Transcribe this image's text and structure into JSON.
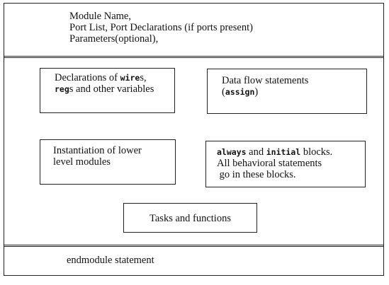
{
  "header": {
    "line1": "Module Name,",
    "line2": "Port List, Port Declarations (if ports present)",
    "line3": "Parameters(optional),"
  },
  "blocks": {
    "declarations": {
      "pre": "Declarations of ",
      "kw1": "wire",
      "post1": "s,",
      "kw2": "reg",
      "post2": "s and other variables"
    },
    "dataflow": {
      "line1": "Data flow statements",
      "open": "(",
      "kw": "assign",
      "close": ")"
    },
    "instantiation": {
      "line1": "Instantiation of lower",
      "line2": "level modules"
    },
    "behavioral": {
      "kw1": "always",
      "mid": " and ",
      "kw2": "initial",
      "post": " blocks.",
      "line2": "All behavioral statements",
      "line3": " go in these blocks."
    },
    "tasks": {
      "label": "Tasks and functions"
    }
  },
  "footer": {
    "label": "endmodule statement"
  }
}
